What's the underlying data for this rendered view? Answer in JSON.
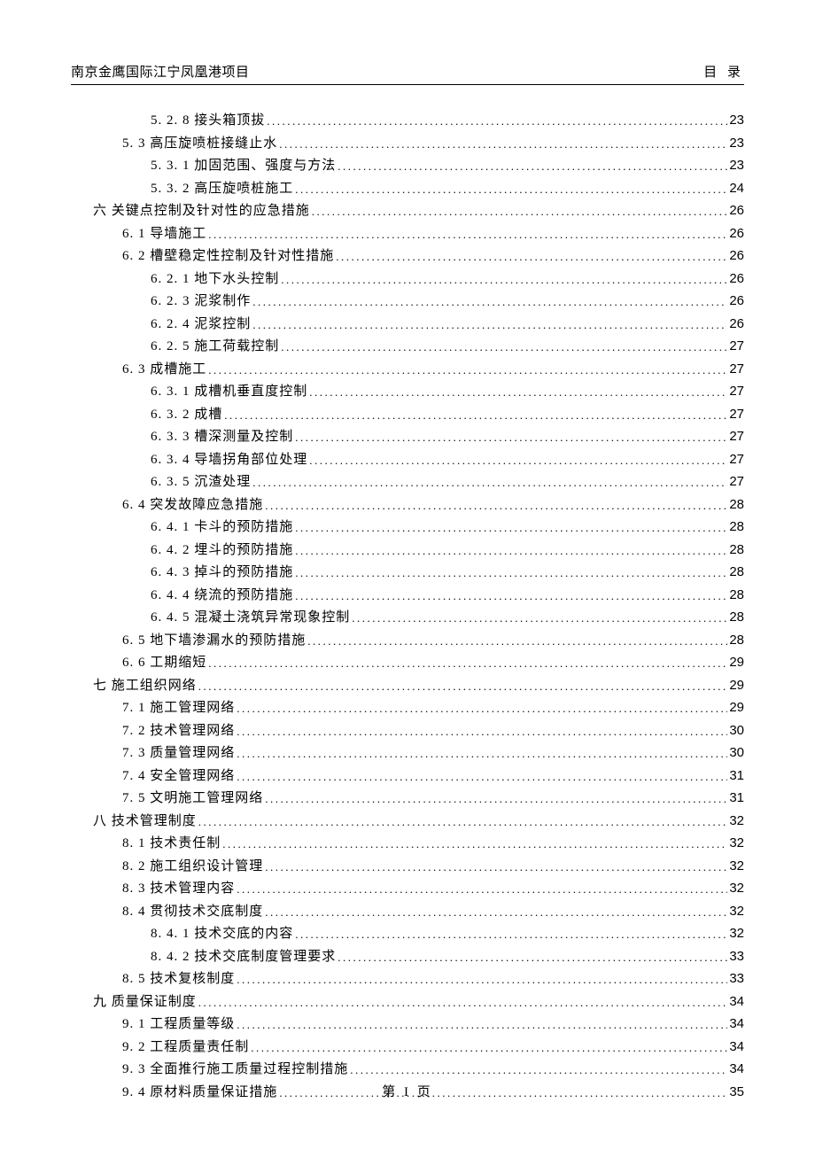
{
  "header": {
    "left": "南京金鹰国际江宁凤凰港项目",
    "right": "目 录"
  },
  "footer": "第  I  页",
  "toc": [
    {
      "indent": 2,
      "text": "5. 2. 8 接头箱顶拔",
      "page": "23"
    },
    {
      "indent": 1,
      "text": "5. 3 高压旋喷桩接缝止水",
      "page": "23"
    },
    {
      "indent": 2,
      "text": "5. 3. 1 加固范围、强度与方法",
      "page": "23"
    },
    {
      "indent": 2,
      "text": "5. 3. 2 高压旋喷桩施工",
      "page": "24"
    },
    {
      "indent": 0,
      "text": "六 关键点控制及针对性的应急措施",
      "page": "26"
    },
    {
      "indent": 1,
      "text": "6. 1 导墙施工",
      "page": "26"
    },
    {
      "indent": 1,
      "text": "6. 2 槽壁稳定性控制及针对性措施",
      "page": "26"
    },
    {
      "indent": 2,
      "text": "6. 2. 1 地下水头控制",
      "page": "26"
    },
    {
      "indent": 2,
      "text": "6. 2. 3 泥浆制作",
      "page": "26"
    },
    {
      "indent": 2,
      "text": "6. 2. 4 泥浆控制",
      "page": "26"
    },
    {
      "indent": 2,
      "text": "6. 2. 5 施工荷载控制",
      "page": "27"
    },
    {
      "indent": 1,
      "text": "6. 3 成槽施工",
      "page": "27"
    },
    {
      "indent": 2,
      "text": "6. 3. 1 成槽机垂直度控制",
      "page": "27"
    },
    {
      "indent": 2,
      "text": "6. 3. 2 成槽",
      "page": "27"
    },
    {
      "indent": 2,
      "text": "6. 3. 3 槽深测量及控制",
      "page": "27"
    },
    {
      "indent": 2,
      "text": "6. 3. 4 导墙拐角部位处理",
      "page": "27"
    },
    {
      "indent": 2,
      "text": "6. 3. 5 沉渣处理",
      "page": "27"
    },
    {
      "indent": 1,
      "text": "6. 4 突发故障应急措施",
      "page": "28"
    },
    {
      "indent": 2,
      "text": "6. 4. 1 卡斗的预防措施",
      "page": "28"
    },
    {
      "indent": 2,
      "text": "6. 4. 2 埋斗的预防措施",
      "page": "28"
    },
    {
      "indent": 2,
      "text": "6. 4. 3 掉斗的预防措施",
      "page": "28"
    },
    {
      "indent": 2,
      "text": "6. 4. 4 绕流的预防措施",
      "page": "28"
    },
    {
      "indent": 2,
      "text": "6. 4. 5 混凝土浇筑异常现象控制",
      "page": "28"
    },
    {
      "indent": 1,
      "text": "6. 5 地下墙渗漏水的预防措施",
      "page": "28"
    },
    {
      "indent": 1,
      "text": "6. 6 工期缩短",
      "page": "29"
    },
    {
      "indent": 0,
      "text": "七 施工组织网络",
      "page": "29"
    },
    {
      "indent": 1,
      "text": "7. 1 施工管理网络",
      "page": "29"
    },
    {
      "indent": 1,
      "text": "7. 2 技术管理网络",
      "page": "30"
    },
    {
      "indent": 1,
      "text": "7. 3 质量管理网络",
      "page": "30"
    },
    {
      "indent": 1,
      "text": "7. 4 安全管理网络",
      "page": "31"
    },
    {
      "indent": 1,
      "text": "7. 5 文明施工管理网络",
      "page": "31"
    },
    {
      "indent": 0,
      "text": "八 技术管理制度",
      "page": "32"
    },
    {
      "indent": 1,
      "text": "8. 1 技术责任制",
      "page": "32"
    },
    {
      "indent": 1,
      "text": "8. 2 施工组织设计管理",
      "page": "32"
    },
    {
      "indent": 1,
      "text": "8. 3 技术管理内容",
      "page": "32"
    },
    {
      "indent": 1,
      "text": "8. 4 贯彻技术交底制度",
      "page": "32"
    },
    {
      "indent": 2,
      "text": "8. 4. 1 技术交底的内容",
      "page": "32"
    },
    {
      "indent": 2,
      "text": "8. 4. 2 技术交底制度管理要求",
      "page": "33"
    },
    {
      "indent": 1,
      "text": "8. 5 技术复核制度",
      "page": "33"
    },
    {
      "indent": 0,
      "text": "九 质量保证制度",
      "page": "34"
    },
    {
      "indent": 1,
      "text": "9. 1 工程质量等级",
      "page": "34"
    },
    {
      "indent": 1,
      "text": "9. 2 工程质量责任制",
      "page": "34"
    },
    {
      "indent": 1,
      "text": "9. 3 全面推行施工质量过程控制措施",
      "page": "34"
    },
    {
      "indent": 1,
      "text": "9. 4 原材料质量保证措施",
      "page": "35"
    }
  ]
}
